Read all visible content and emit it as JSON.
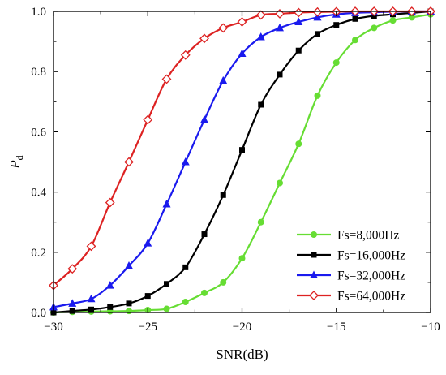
{
  "chart_data": {
    "type": "line",
    "xlabel": "SNR(dB)",
    "ylabel_main": "P",
    "ylabel_sub": "d",
    "xlim": [
      -30,
      -10
    ],
    "ylim": [
      0,
      1.0
    ],
    "xticks": [
      -30,
      -25,
      -20,
      -15,
      -10
    ],
    "xtick_labels": [
      "−30",
      "−25",
      "−20",
      "−15",
      "−10"
    ],
    "yticks": [
      0,
      0.2,
      0.4,
      0.6,
      0.8,
      1.0
    ],
    "ytick_labels": [
      "0.0",
      "0.2",
      "0.4",
      "0.6",
      "0.8",
      "1.0"
    ],
    "grid": false,
    "legend_position": "bottom-right",
    "x": [
      -30,
      -29,
      -28,
      -27,
      -26,
      -25,
      -24,
      -23,
      -22,
      -21,
      -20,
      -19,
      -18,
      -17,
      -16,
      -15,
      -14,
      -13,
      -12,
      -11,
      -10
    ],
    "series": [
      {
        "name": "Fs=8,000Hz",
        "color": "#66dd33",
        "marker": "circle",
        "values": [
          0.0,
          0.002,
          0.003,
          0.004,
          0.005,
          0.008,
          0.012,
          0.035,
          0.065,
          0.1,
          0.18,
          0.3,
          0.43,
          0.56,
          0.72,
          0.83,
          0.905,
          0.945,
          0.97,
          0.98,
          0.99
        ]
      },
      {
        "name": "Fs=16,000Hz",
        "color": "#000000",
        "marker": "square",
        "values": [
          0.0,
          0.005,
          0.01,
          0.018,
          0.03,
          0.055,
          0.095,
          0.15,
          0.26,
          0.39,
          0.54,
          0.69,
          0.79,
          0.87,
          0.925,
          0.955,
          0.975,
          0.985,
          0.99,
          0.995,
          1.0
        ]
      },
      {
        "name": "Fs=32,000Hz",
        "color": "#1a1aee",
        "marker": "triangle",
        "values": [
          0.018,
          0.03,
          0.045,
          0.09,
          0.155,
          0.23,
          0.36,
          0.5,
          0.64,
          0.77,
          0.86,
          0.915,
          0.945,
          0.965,
          0.98,
          0.99,
          0.995,
          0.997,
          0.999,
          1.0,
          1.0
        ]
      },
      {
        "name": "Fs=64,000Hz",
        "color": "#dd2222",
        "marker": "diamond-open",
        "values": [
          0.09,
          0.145,
          0.22,
          0.365,
          0.5,
          0.64,
          0.775,
          0.855,
          0.91,
          0.945,
          0.965,
          0.988,
          0.992,
          0.996,
          0.998,
          0.999,
          1.0,
          1.0,
          1.0,
          1.0,
          1.0
        ]
      }
    ]
  }
}
